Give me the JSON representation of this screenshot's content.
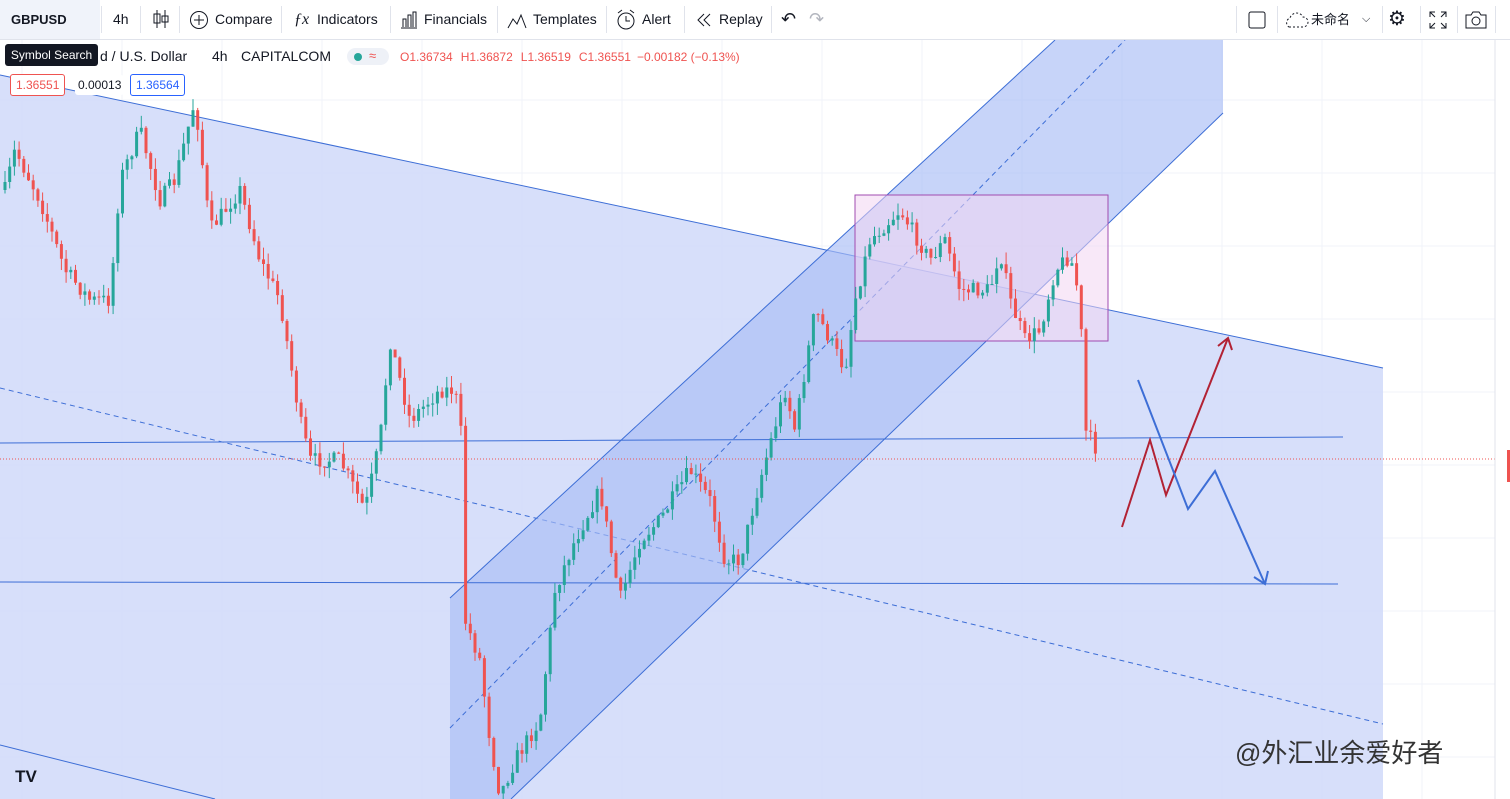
{
  "toolbar": {
    "symbol": "GBPUSD",
    "interval": "4h",
    "buttons": [
      "Compare",
      "Indicators",
      "Financials",
      "Templates",
      "Alert",
      "Replay"
    ],
    "layout_name": "未命名"
  },
  "tooltip": "Symbol Search",
  "legend": {
    "symbol": "d / U.S. Dollar",
    "interval": "4h",
    "exchange": "CAPITALCOM",
    "ohlc": [
      {
        "label": "O",
        "value": "1.36734"
      },
      {
        "label": "H",
        "value": "1.36872"
      },
      {
        "label": "L",
        "value": "1.36519"
      },
      {
        "label": "C",
        "value": "1.36551"
      }
    ],
    "change": "−0.00182 (−0.13%)"
  },
  "prices": {
    "bid": "1.36551",
    "spread": "0.00013",
    "ask": "1.36564"
  },
  "watermark": "@外汇业余爱好者"
}
